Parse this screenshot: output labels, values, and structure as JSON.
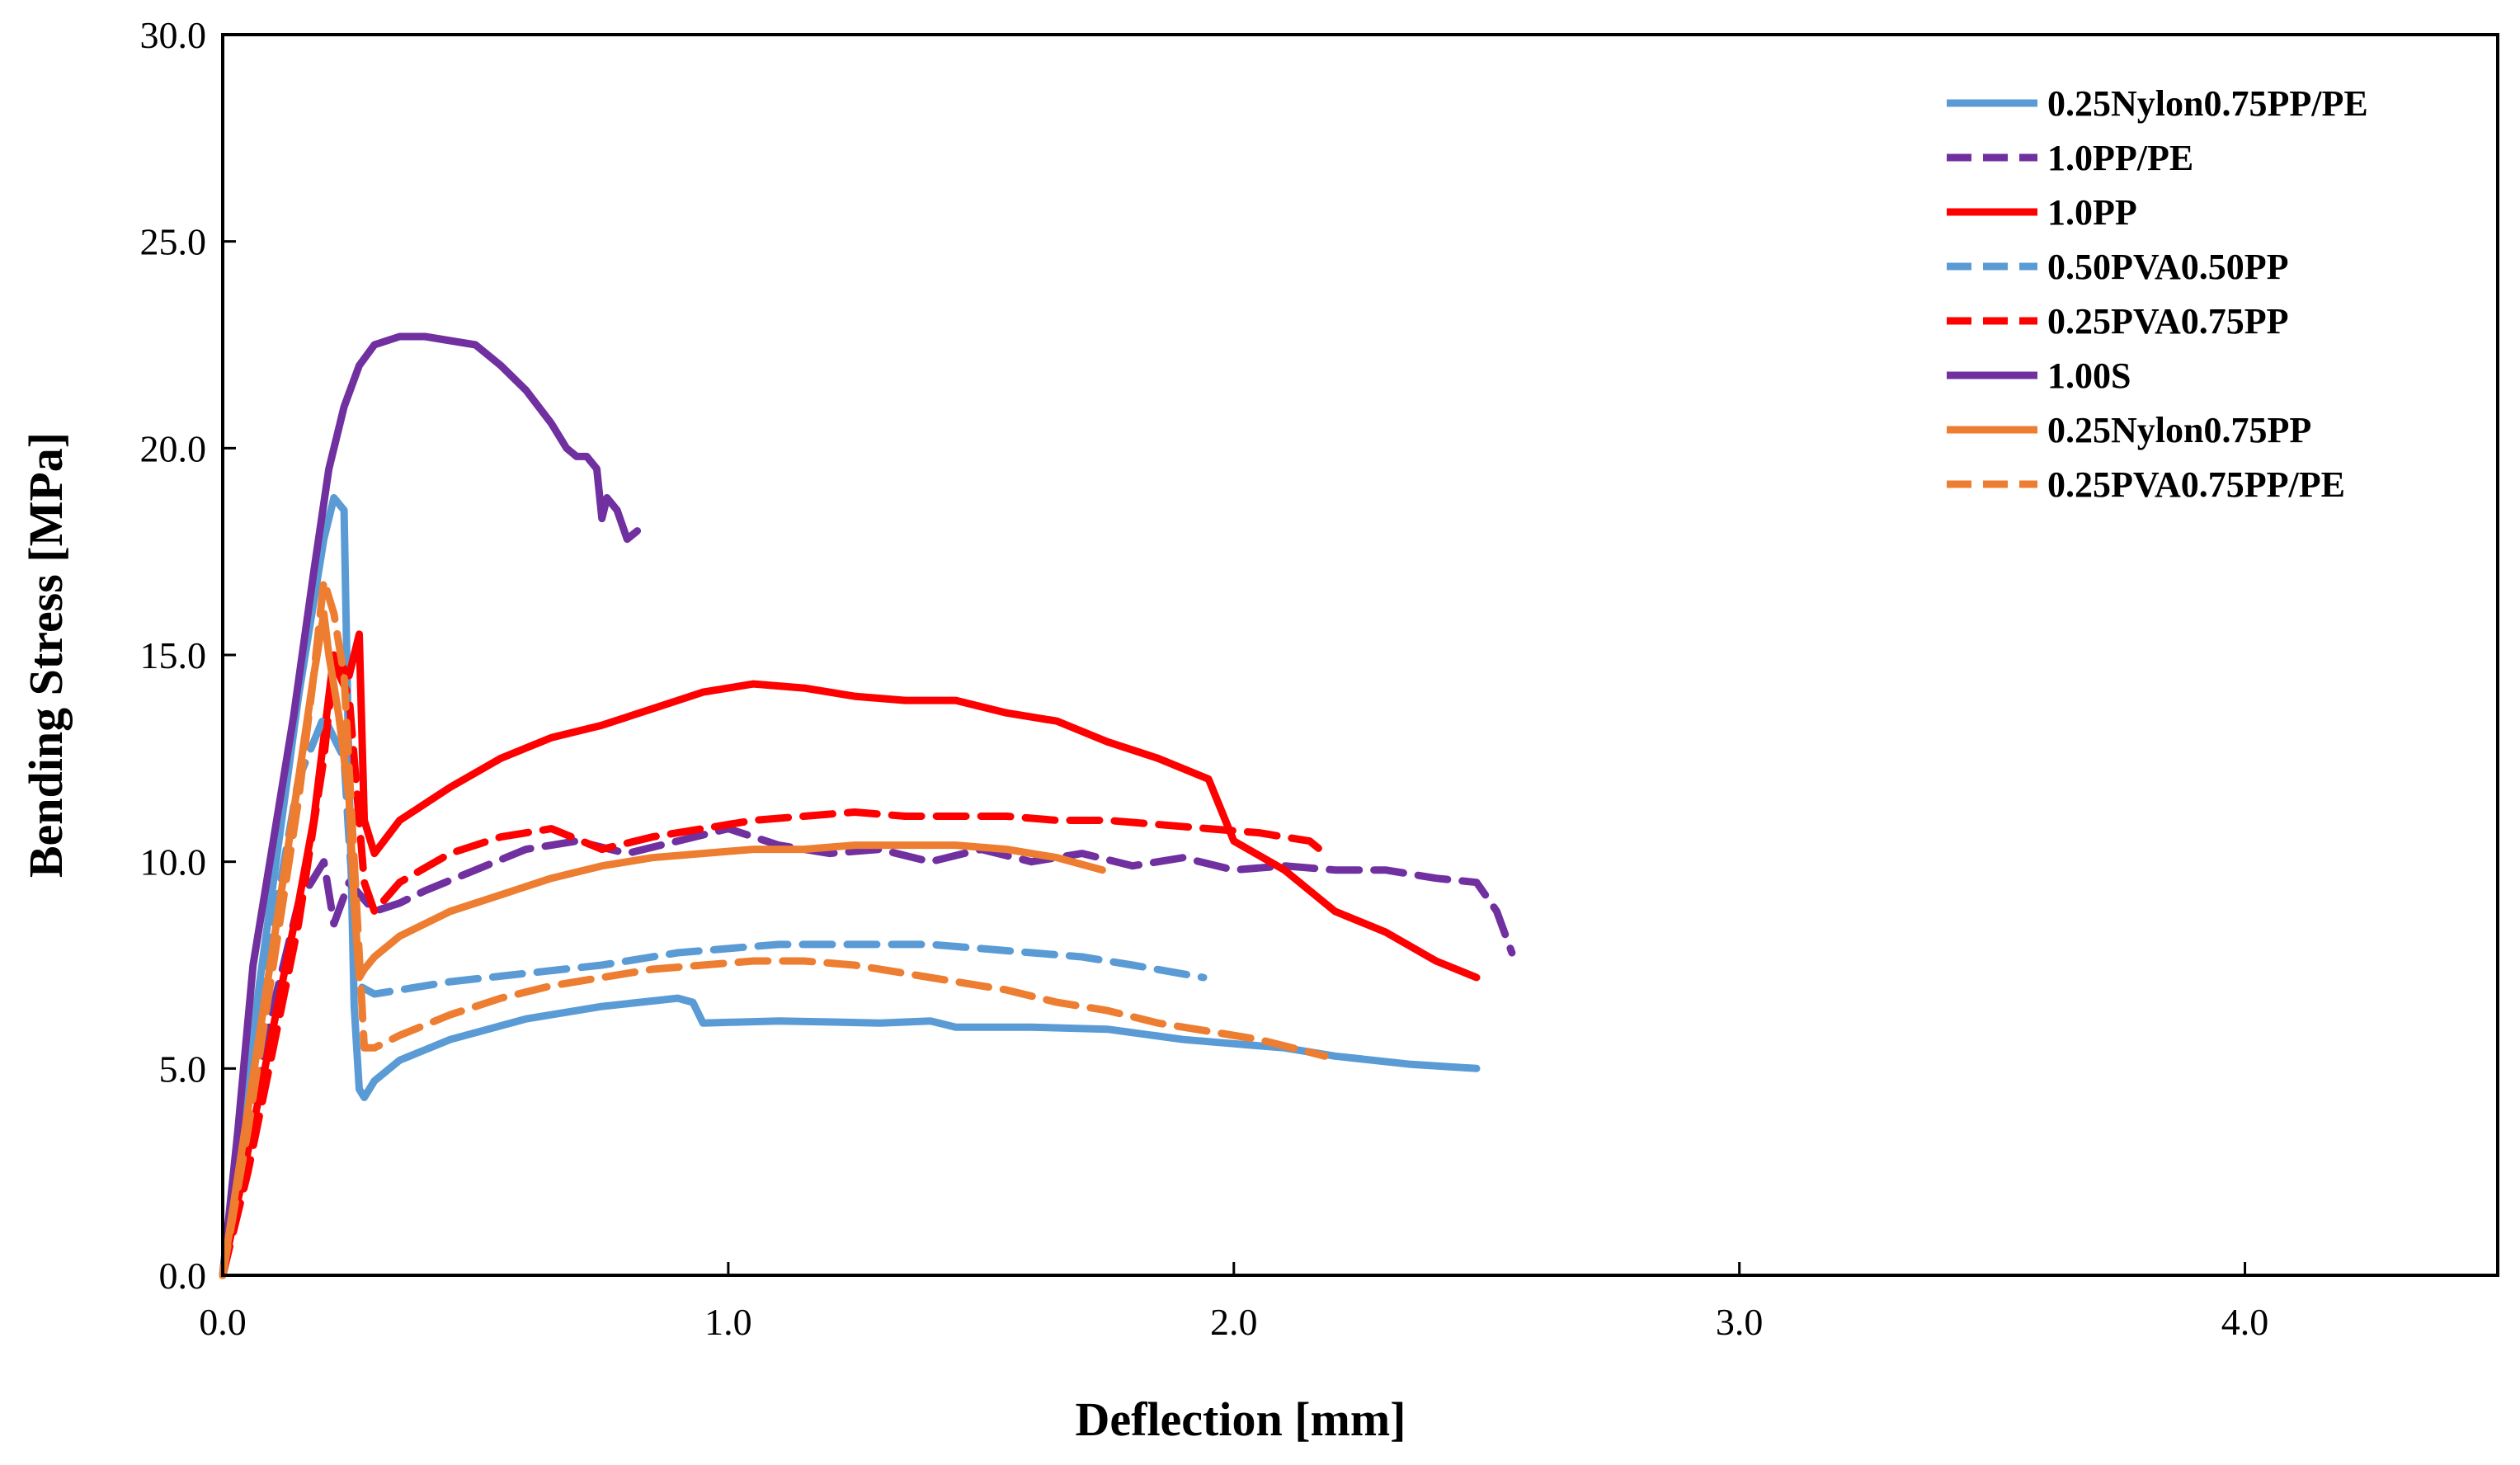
{
  "chart_data": {
    "type": "line",
    "title": "",
    "xlabel": "Deflection [mm]",
    "ylabel": "Bending Stress [MPa]",
    "xlim": [
      0,
      4.5
    ],
    "ylim": [
      0,
      30
    ],
    "xticks": [
      0,
      1,
      2,
      3,
      4
    ],
    "xtick_labels": [
      "0.0",
      "1.0",
      "2.0",
      "3.0",
      "4.0"
    ],
    "yticks": [
      0,
      5,
      10,
      15,
      20,
      25,
      30
    ],
    "ytick_labels": [
      "0.0",
      "5.0",
      "10.0",
      "15.0",
      "20.0",
      "25.0",
      "30.0"
    ],
    "grid": false,
    "legend_position": "top-right",
    "series": [
      {
        "name": "0.25Nylon0.75PP/PE",
        "color": "#5B9BD5",
        "dash": "solid",
        "x": [
          0,
          0.05,
          0.1,
          0.15,
          0.2,
          0.22,
          0.24,
          0.25,
          0.26,
          0.27,
          0.28,
          0.3,
          0.35,
          0.45,
          0.6,
          0.75,
          0.9,
          0.93,
          0.95,
          1.1,
          1.3,
          1.4,
          1.45,
          1.6,
          1.75,
          1.9,
          2.0,
          2.1,
          2.2,
          2.35,
          2.48
        ],
        "y": [
          0,
          5,
          9.5,
          14,
          17.8,
          18.8,
          18.5,
          12.0,
          6.5,
          4.5,
          4.3,
          4.7,
          5.2,
          5.7,
          6.2,
          6.5,
          6.7,
          6.6,
          6.1,
          6.15,
          6.1,
          6.15,
          6.0,
          6.0,
          5.95,
          5.7,
          5.6,
          5.5,
          5.3,
          5.1,
          5.0
        ]
      },
      {
        "name": "1.0PP/PE",
        "color": "#7030A0",
        "dash": "dashed",
        "x": [
          0,
          0.05,
          0.1,
          0.15,
          0.2,
          0.22,
          0.25,
          0.3,
          0.35,
          0.4,
          0.5,
          0.6,
          0.7,
          0.8,
          0.9,
          1.0,
          1.1,
          1.2,
          1.3,
          1.4,
          1.5,
          1.6,
          1.7,
          1.8,
          1.9,
          2.0,
          2.1,
          2.2,
          2.3,
          2.4,
          2.48,
          2.52,
          2.55
        ],
        "y": [
          0,
          3.5,
          6.5,
          9.0,
          10.0,
          8.5,
          9.5,
          8.8,
          9.0,
          9.3,
          9.8,
          10.3,
          10.5,
          10.2,
          10.5,
          10.8,
          10.4,
          10.2,
          10.3,
          10.0,
          10.3,
          10.0,
          10.2,
          9.9,
          10.1,
          9.8,
          9.9,
          9.8,
          9.8,
          9.6,
          9.5,
          8.8,
          7.8
        ]
      },
      {
        "name": "1.0PP",
        "color": "#FF0000",
        "dash": "solid",
        "x": [
          0,
          0.05,
          0.1,
          0.15,
          0.18,
          0.2,
          0.22,
          0.25,
          0.27,
          0.28,
          0.3,
          0.35,
          0.45,
          0.55,
          0.65,
          0.75,
          0.85,
          0.95,
          1.05,
          1.15,
          1.25,
          1.35,
          1.45,
          1.55,
          1.65,
          1.75,
          1.85,
          1.95,
          2.0,
          2.1,
          2.2,
          2.3,
          2.4,
          2.48
        ],
        "y": [
          0,
          3,
          6,
          9,
          11,
          13,
          15,
          14.5,
          15.5,
          11,
          10.2,
          11.0,
          11.8,
          12.5,
          13.0,
          13.3,
          13.7,
          14.1,
          14.3,
          14.2,
          14.0,
          13.9,
          13.9,
          13.6,
          13.4,
          12.9,
          12.5,
          12.0,
          10.5,
          9.8,
          8.8,
          8.3,
          7.6,
          7.2
        ]
      },
      {
        "name": "0.50PVA0.50PP",
        "color": "#5B9BD5",
        "dash": "dashed",
        "x": [
          0,
          0.05,
          0.1,
          0.15,
          0.2,
          0.22,
          0.24,
          0.25,
          0.27,
          0.3,
          0.35,
          0.45,
          0.6,
          0.75,
          0.9,
          1.0,
          1.1,
          1.2,
          1.3,
          1.4,
          1.5,
          1.6,
          1.7,
          1.8,
          1.94
        ],
        "y": [
          0,
          4,
          8.5,
          12,
          13.5,
          13.0,
          12.5,
          10.5,
          7.0,
          6.8,
          6.9,
          7.1,
          7.3,
          7.5,
          7.8,
          7.9,
          8.0,
          8.0,
          8.0,
          8.0,
          7.9,
          7.8,
          7.7,
          7.5,
          7.2
        ]
      },
      {
        "name": "0.25PVA0.75PP",
        "color": "#FF0000",
        "dash": "dashed",
        "x": [
          0,
          0.05,
          0.1,
          0.15,
          0.2,
          0.22,
          0.25,
          0.28,
          0.3,
          0.35,
          0.45,
          0.55,
          0.65,
          0.75,
          0.85,
          0.95,
          1.05,
          1.15,
          1.25,
          1.35,
          1.45,
          1.55,
          1.65,
          1.75,
          1.85,
          1.95,
          2.05,
          2.15,
          2.18
        ],
        "y": [
          0,
          2.5,
          5.5,
          8.5,
          12.5,
          14.8,
          14.0,
          9.5,
          8.8,
          9.5,
          10.2,
          10.6,
          10.8,
          10.3,
          10.6,
          10.8,
          11.0,
          11.1,
          11.2,
          11.1,
          11.1,
          11.1,
          11.0,
          11.0,
          10.9,
          10.8,
          10.7,
          10.5,
          10.2
        ]
      },
      {
        "name": "1.00S",
        "color": "#7030A0",
        "dash": "solid",
        "x": [
          0,
          0.03,
          0.06,
          0.1,
          0.14,
          0.18,
          0.21,
          0.24,
          0.27,
          0.3,
          0.35,
          0.4,
          0.45,
          0.5,
          0.55,
          0.6,
          0.65,
          0.68,
          0.7,
          0.72,
          0.74,
          0.75,
          0.76,
          0.78,
          0.8,
          0.82
        ],
        "y": [
          0,
          3.5,
          7.5,
          10.5,
          13.5,
          17.0,
          19.5,
          21.0,
          22.0,
          22.5,
          22.7,
          22.7,
          22.6,
          22.5,
          22.0,
          21.4,
          20.6,
          20.0,
          19.8,
          19.8,
          19.5,
          18.3,
          18.8,
          18.5,
          17.8,
          18.0
        ]
      },
      {
        "name": "0.25Nylon0.75PP",
        "color": "#ED7D31",
        "dash": "solid",
        "x": [
          0,
          0.05,
          0.1,
          0.15,
          0.18,
          0.2,
          0.21,
          0.23,
          0.25,
          0.26,
          0.27,
          0.28,
          0.3,
          0.35,
          0.45,
          0.55,
          0.65,
          0.75,
          0.85,
          0.95,
          1.05,
          1.15,
          1.25,
          1.35,
          1.45,
          1.55,
          1.65,
          1.74
        ],
        "y": [
          0,
          4,
          8,
          12,
          14.5,
          16.0,
          15.0,
          13.5,
          11.5,
          9.0,
          7.2,
          7.4,
          7.7,
          8.2,
          8.8,
          9.2,
          9.6,
          9.9,
          10.1,
          10.2,
          10.3,
          10.3,
          10.4,
          10.4,
          10.4,
          10.3,
          10.1,
          9.8
        ]
      },
      {
        "name": "0.25PVA0.75PP/PE",
        "color": "#ED7D31",
        "dash": "dashed",
        "x": [
          0,
          0.05,
          0.1,
          0.15,
          0.18,
          0.2,
          0.22,
          0.24,
          0.26,
          0.28,
          0.3,
          0.35,
          0.45,
          0.55,
          0.65,
          0.75,
          0.85,
          0.95,
          1.05,
          1.15,
          1.25,
          1.35,
          1.45,
          1.55,
          1.65,
          1.75,
          1.85,
          1.95,
          2.05,
          2.18
        ],
        "y": [
          0,
          3.5,
          7.5,
          11.5,
          14.5,
          16.8,
          16.0,
          14.5,
          10.0,
          5.5,
          5.5,
          5.8,
          6.3,
          6.7,
          7.0,
          7.2,
          7.4,
          7.5,
          7.6,
          7.6,
          7.5,
          7.3,
          7.1,
          6.9,
          6.6,
          6.4,
          6.1,
          5.9,
          5.7,
          5.3
        ]
      }
    ]
  }
}
